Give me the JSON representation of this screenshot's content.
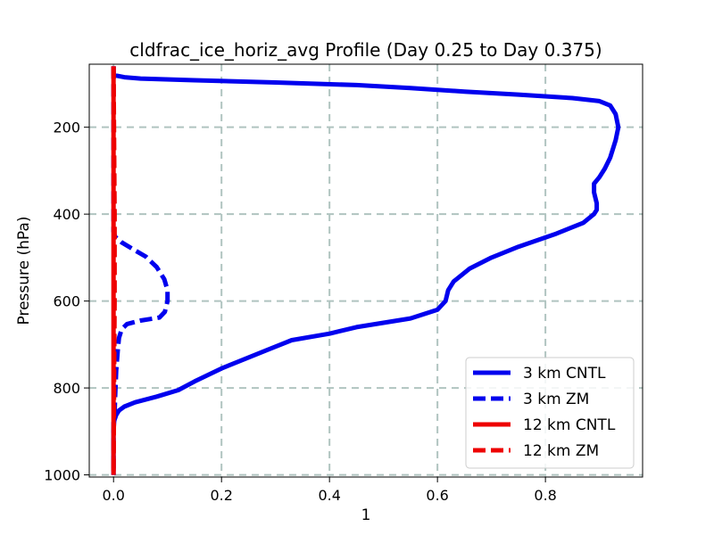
{
  "chart_data": {
    "type": "line",
    "title": "cldfrac_ice_horiz_avg Profile (Day 0.25 to Day 0.375)",
    "xlabel": "1",
    "ylabel": "Pressure (hPa)",
    "xlim": [
      -0.045,
      0.98
    ],
    "ylim": [
      1005,
      55
    ],
    "y_inverted": true,
    "grid": true,
    "legend_position": "lower right",
    "x_ticks": [
      0.0,
      0.2,
      0.4,
      0.6,
      0.8
    ],
    "x_tick_labels": [
      "0.0",
      "0.2",
      "0.4",
      "0.6",
      "0.8"
    ],
    "y_ticks": [
      200,
      400,
      600,
      800,
      1000
    ],
    "y_tick_labels": [
      "200",
      "400",
      "600",
      "800",
      "1000"
    ],
    "series": [
      {
        "name": "3 km CNTL",
        "color": "#0000ee",
        "dash": "solid",
        "points": [
          [
            0.0,
            60
          ],
          [
            0.0,
            80
          ],
          [
            0.02,
            85
          ],
          [
            0.05,
            88
          ],
          [
            0.15,
            92
          ],
          [
            0.3,
            97
          ],
          [
            0.45,
            103
          ],
          [
            0.55,
            110
          ],
          [
            0.65,
            118
          ],
          [
            0.75,
            125
          ],
          [
            0.85,
            133
          ],
          [
            0.9,
            140
          ],
          [
            0.92,
            150
          ],
          [
            0.93,
            170
          ],
          [
            0.935,
            200
          ],
          [
            0.93,
            230
          ],
          [
            0.92,
            270
          ],
          [
            0.91,
            295
          ],
          [
            0.9,
            315
          ],
          [
            0.89,
            330
          ],
          [
            0.89,
            350
          ],
          [
            0.895,
            375
          ],
          [
            0.895,
            390
          ],
          [
            0.89,
            400
          ],
          [
            0.87,
            420
          ],
          [
            0.82,
            445
          ],
          [
            0.75,
            475
          ],
          [
            0.7,
            500
          ],
          [
            0.66,
            525
          ],
          [
            0.63,
            555
          ],
          [
            0.62,
            575
          ],
          [
            0.615,
            600
          ],
          [
            0.6,
            620
          ],
          [
            0.55,
            640
          ],
          [
            0.45,
            660
          ],
          [
            0.4,
            675
          ],
          [
            0.33,
            690
          ],
          [
            0.29,
            710
          ],
          [
            0.2,
            755
          ],
          [
            0.15,
            785
          ],
          [
            0.12,
            805
          ],
          [
            0.08,
            820
          ],
          [
            0.04,
            833
          ],
          [
            0.02,
            843
          ],
          [
            0.01,
            852
          ],
          [
            0.005,
            862
          ],
          [
            0.0,
            880
          ],
          [
            0.0,
            1000
          ]
        ]
      },
      {
        "name": "3 km ZM",
        "color": "#0000ee",
        "dash": "dashed",
        "points": [
          [
            0.0,
            60
          ],
          [
            0.0,
            440
          ],
          [
            0.003,
            452
          ],
          [
            0.015,
            465
          ],
          [
            0.035,
            480
          ],
          [
            0.06,
            498
          ],
          [
            0.08,
            522
          ],
          [
            0.094,
            550
          ],
          [
            0.1,
            575
          ],
          [
            0.1,
            600
          ],
          [
            0.095,
            625
          ],
          [
            0.085,
            638
          ],
          [
            0.05,
            645
          ],
          [
            0.025,
            653
          ],
          [
            0.015,
            665
          ],
          [
            0.01,
            685
          ],
          [
            0.008,
            710
          ],
          [
            0.005,
            760
          ],
          [
            0.003,
            820
          ],
          [
            0.002,
            860
          ],
          [
            0.0,
            900
          ],
          [
            0.0,
            1000
          ]
        ]
      },
      {
        "name": "12 km CNTL",
        "color": "#ee0000",
        "dash": "solid",
        "points": [
          [
            0.0,
            60
          ],
          [
            0.0,
            1000
          ]
        ]
      },
      {
        "name": "12 km ZM",
        "color": "#ee0000",
        "dash": "dashed",
        "points": [
          [
            0.0,
            60
          ],
          [
            0.002,
            400
          ],
          [
            0.002,
            600
          ],
          [
            0.0,
            1000
          ]
        ]
      }
    ]
  }
}
